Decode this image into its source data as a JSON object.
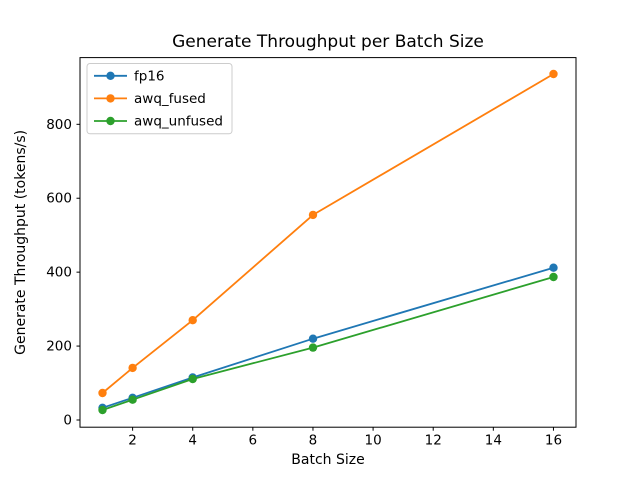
{
  "chart_data": {
    "type": "line",
    "title": "Generate Throughput per Batch Size",
    "xlabel": "Batch Size",
    "ylabel": "Generate Throughput (tokens/s)",
    "x": [
      1,
      2,
      4,
      8,
      16
    ],
    "series": [
      {
        "name": "fp16",
        "color": "#1f77b4",
        "values": [
          33,
          60,
          115,
          220,
          412
        ]
      },
      {
        "name": "awq_fused",
        "color": "#ff7f0e",
        "values": [
          73,
          141,
          270,
          555,
          936
        ]
      },
      {
        "name": "awq_unfused",
        "color": "#2ca02c",
        "values": [
          27,
          55,
          111,
          196,
          387
        ]
      }
    ],
    "xlim": [
      0.25,
      16.75
    ],
    "ylim": [
      -19.5,
      980.5
    ],
    "xticks": [
      2,
      4,
      6,
      8,
      10,
      12,
      14,
      16
    ],
    "yticks": [
      0,
      200,
      400,
      600,
      800
    ],
    "grid": false,
    "legend_position": "upper left",
    "marker": "o",
    "axes_color": "#000000",
    "legend_border_color": "#cccccc"
  }
}
